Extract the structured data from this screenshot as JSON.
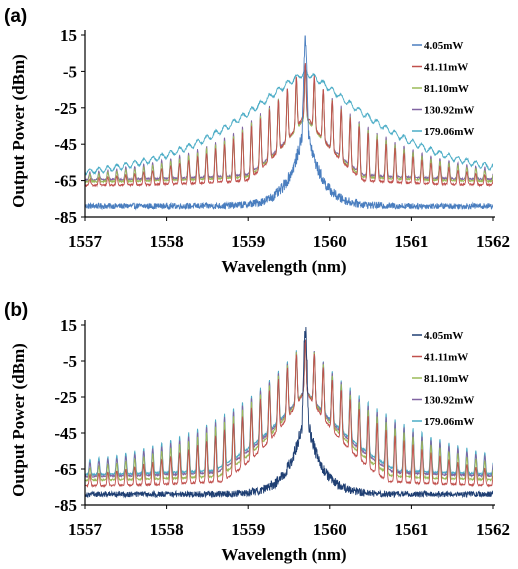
{
  "chart_data": [
    {
      "panel": "(a)",
      "type": "line",
      "xlabel": "Wavelength (nm)",
      "ylabel": "Output Power (dBm)",
      "xlim": [
        1557,
        1562
      ],
      "ylim": [
        -85,
        15
      ],
      "xticks": [
        "1557",
        "1558",
        "1559",
        "1560",
        "1561",
        "1562"
      ],
      "yticks": [
        "15",
        "-5",
        "-25",
        "-45",
        "-65",
        "-85"
      ],
      "center_wavelength": 1559.7,
      "legend_position": "top-right",
      "series": [
        {
          "name": "4.05mW",
          "color": "#4a7ebf",
          "baseline_dbm": -79,
          "peak_dbm": 12
        },
        {
          "name": "41.11mW",
          "color": "#c0504d",
          "baseline_dbm": -68,
          "peak_dbm": -2
        },
        {
          "name": "81.10mW",
          "color": "#9bbb59",
          "baseline_dbm": -66,
          "peak_dbm": -4
        },
        {
          "name": "130.92mW",
          "color": "#8064a2",
          "baseline_dbm": -65,
          "peak_dbm": -4
        },
        {
          "name": "179.06mW",
          "color": "#4bacc6",
          "baseline_dbm": -64,
          "peak_dbm": -6
        }
      ]
    },
    {
      "panel": "(b)",
      "type": "line",
      "xlabel": "Wavelength (nm)",
      "ylabel": "Output Power (dBm)",
      "xlim": [
        1557,
        1562
      ],
      "ylim": [
        -85,
        15
      ],
      "xticks": [
        "1557",
        "1558",
        "1559",
        "1560",
        "1561",
        "1562"
      ],
      "yticks": [
        "15",
        "-5",
        "-25",
        "-45",
        "-65",
        "-85"
      ],
      "center_wavelength": 1559.7,
      "legend_position": "top-right",
      "series": [
        {
          "name": "4.05mW",
          "color": "#1f3f73",
          "baseline_dbm": -79,
          "peak_dbm": 12
        },
        {
          "name": "41.11mW",
          "color": "#c0504d",
          "baseline_dbm": -75,
          "peak_dbm": 5
        },
        {
          "name": "81.10mW",
          "color": "#9bbb59",
          "baseline_dbm": -72,
          "peak_dbm": 5
        },
        {
          "name": "130.92mW",
          "color": "#8064a2",
          "baseline_dbm": -70,
          "peak_dbm": 5
        },
        {
          "name": "179.06mW",
          "color": "#4bacc6",
          "baseline_dbm": -69,
          "peak_dbm": 5
        }
      ]
    }
  ]
}
